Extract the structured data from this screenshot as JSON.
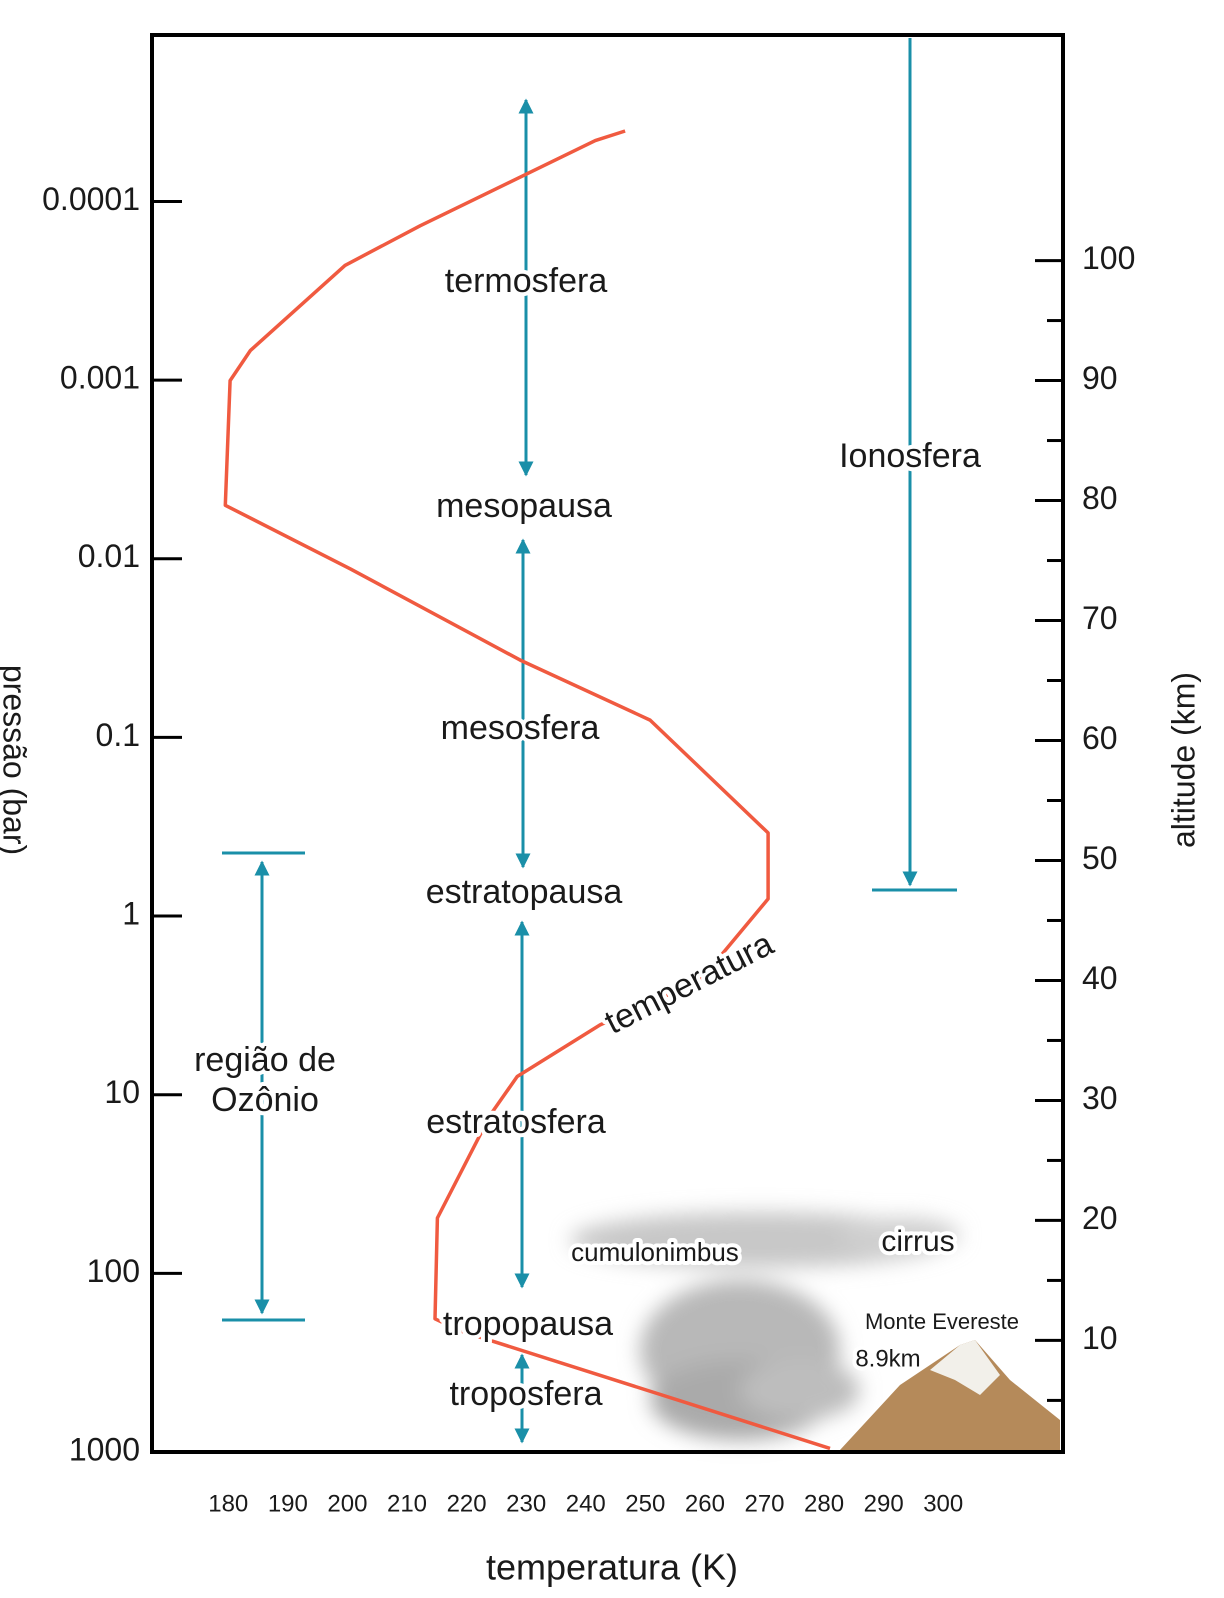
{
  "chart_data": {
    "type": "line",
    "x_label": "temperatura (K)",
    "y_label": "pressão (bar)",
    "y2_label": "altitude (km)",
    "xlim": [
      167.2,
      320.1
    ],
    "xticks": [
      180,
      190,
      200,
      210,
      220,
      230,
      240,
      250,
      260,
      270,
      280,
      290,
      300
    ],
    "ylim": [
      1000,
      1.17e-05
    ],
    "yticks": [
      0.0001,
      0.001,
      0.01,
      0.1,
      1,
      10,
      100,
      1000
    ],
    "y_log": true,
    "y2lim": [
      0.7,
      118.8
    ],
    "y2ticks": [
      10,
      20,
      30,
      40,
      50,
      60,
      70,
      80,
      90,
      100
    ],
    "y2minor_ticks": [
      5,
      15,
      25,
      35,
      45,
      55,
      65,
      75,
      85,
      95
    ],
    "series": [
      {
        "name": "temperatura",
        "color": "#f05a40",
        "axis": "y2",
        "x": [
          281,
          218.9,
          214.7,
          215.1,
          224,
          228.5,
          242.4,
          259.2,
          270.6,
          270.6,
          250.8,
          229,
          200.5,
          179.5,
          180.3,
          183.7,
          199.6,
          212.2,
          241.6,
          246.6
        ],
        "values": [
          1.0,
          10.8,
          11.8,
          20.2,
          28.8,
          32,
          36.3,
          40,
          46.8,
          52.3,
          61.7,
          66.7,
          74.3,
          79.6,
          90,
          92.5,
          99.6,
          102.9,
          110,
          110.8
        ]
      }
    ],
    "annotations": [
      "termosfera",
      "mesopausa",
      "mesosfera",
      "estratopausa",
      "estratosfera",
      "tropopausa",
      "troposfera",
      "região de",
      "Ozônio",
      "Ionosfera",
      "cumulonimbus",
      "cirrus",
      "Monte Evereste",
      "8.9km"
    ]
  }
}
